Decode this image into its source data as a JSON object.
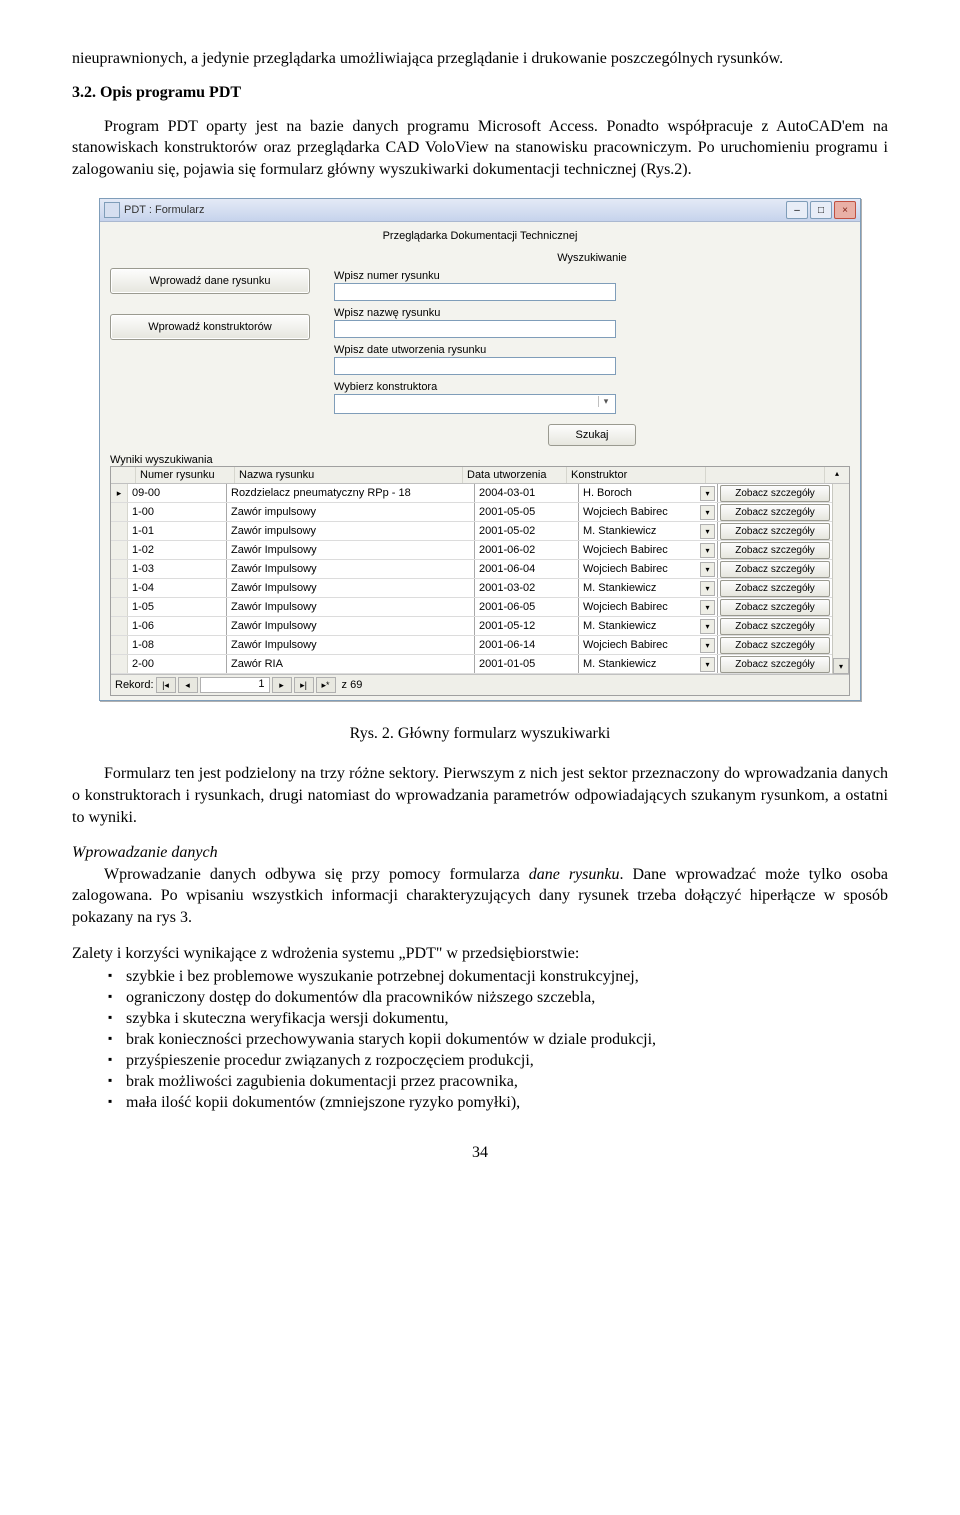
{
  "para1": "nieuprawnionych, a jedynie przeglądarka umożliwiająca przeglądanie i drukowanie poszczególnych rysunków.",
  "heading": "3.2. Opis programu PDT",
  "para2a": "Program PDT oparty jest na bazie danych programu Microsoft Access. Ponadto współpracuje z AutoCAD'em na stanowiskach konstruktorów oraz przeglądarka CAD VoloView na stanowisku pracowniczym. Po uruchomieniu programu i zalogowaniu się, pojawia się formularz główny wyszukiwarki dokumentacji technicznej (Rys.2).",
  "window": {
    "title": "PDT : Formularz",
    "header_center": "Przeglądarka Dokumentacji Technicznej",
    "subheader": "Wyszukiwanie",
    "btn_dane": "Wprowadź dane rysunku",
    "btn_konstr": "Wprowadź konstruktorów",
    "lbl_numer": "Wpisz numer rysunku",
    "lbl_nazwa": "Wpisz nazwę rysunku",
    "lbl_date": "Wpisz date utworzenia rysunku",
    "lbl_sel": "Wybierz  konstruktora",
    "btn_search": "Szukaj",
    "results_label": "Wyniki wyszukiwania",
    "col_num": "Numer rysunku",
    "col_name": "Nazwa rysunku",
    "col_date": "Data utworzenia",
    "col_kon": "Konstruktor",
    "detail_label": "Zobacz szczegóły",
    "rows": [
      {
        "num": "09-00",
        "name": "Rozdzielacz pneumatyczny RPp - 18",
        "date": "2004-03-01",
        "kon": "H. Boroch"
      },
      {
        "num": "1-00",
        "name": "Zawór impulsowy",
        "date": "2001-05-05",
        "kon": "Wojciech Babirec"
      },
      {
        "num": "1-01",
        "name": "Zawór impulsowy",
        "date": "2001-05-02",
        "kon": "M. Stankiewicz"
      },
      {
        "num": "1-02",
        "name": "Zawór Impulsowy",
        "date": "2001-06-02",
        "kon": "Wojciech Babirec"
      },
      {
        "num": "1-03",
        "name": "Zawór Impulsowy",
        "date": "2001-06-04",
        "kon": "Wojciech Babirec"
      },
      {
        "num": "1-04",
        "name": "Zawór Impulsowy",
        "date": "2001-03-02",
        "kon": "M. Stankiewicz"
      },
      {
        "num": "1-05",
        "name": "Zawór Impulsowy",
        "date": "2001-06-05",
        "kon": "Wojciech Babirec"
      },
      {
        "num": "1-06",
        "name": "Zawór Impulsowy",
        "date": "2001-05-12",
        "kon": "M. Stankiewicz"
      },
      {
        "num": "1-08",
        "name": "Zawór Impulsowy",
        "date": "2001-06-14",
        "kon": "Wojciech Babirec"
      },
      {
        "num": "2-00",
        "name": "Zawór RIA",
        "date": "2001-01-05",
        "kon": "M. Stankiewicz"
      }
    ],
    "rec_label": "Rekord:",
    "rec_value": "1",
    "rec_of": "z  69"
  },
  "caption": "Rys. 2. Główny formularz wyszukiwarki",
  "para3": "Formularz ten jest podzielony na trzy różne sektory. Pierwszym z nich jest sektor przeznaczony do wprowadzania danych o konstruktorach i rysunkach, drugi natomiast do wprowadzania parametrów odpowiadających szukanym rysunkom, a ostatni to wyniki.",
  "para4_it": "Wprowadzanie danych",
  "para4a": "Wprowadzanie danych odbywa się przy pomocy formularza ",
  "para4a_it": "dane rysunku",
  "para4b": ". Dane wprowadzać może tylko osoba zalogowana. Po wpisaniu wszystkich informacji charakteryzujących dany rysunek trzeba dołączyć hiperłącze w sposób pokazany na rys 3.",
  "para5": "Zalety i korzyści wynikające z wdrożenia systemu „PDT\" w przedsiębiorstwie:",
  "bullets": [
    "szybkie i bez problemowe wyszukanie potrzebnej dokumentacji konstrukcyjnej,",
    "ograniczony dostęp do dokumentów dla pracowników niższego szczebla,",
    "szybka i skuteczna weryfikacja wersji dokumentu,",
    "brak konieczności przechowywania starych kopii dokumentów w dziale produkcji,",
    "przyśpieszenie procedur związanych z rozpoczęciem produkcji,",
    "brak możliwości zagubienia dokumentacji przez pracownika,",
    "mała ilość kopii dokumentów (zmniejszone ryzyko pomyłki),"
  ],
  "page_num": "34"
}
